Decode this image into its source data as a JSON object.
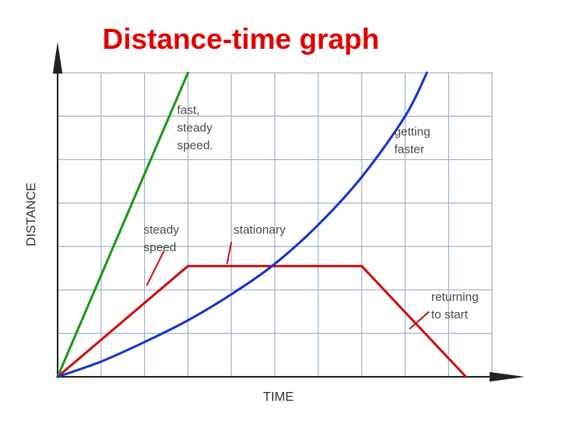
{
  "title": "Distance-time graph",
  "chart_data": {
    "type": "line",
    "xlabel": "TIME",
    "ylabel": "DISTANCE",
    "grid": true,
    "xlim": [
      0,
      10
    ],
    "ylim": [
      0,
      7
    ],
    "series": [
      {
        "id": "green",
        "color": "#1a9a1a",
        "points": [
          [
            0,
            0
          ],
          [
            3,
            7
          ]
        ]
      },
      {
        "id": "red",
        "color": "#cc1111",
        "points": [
          [
            0,
            0
          ],
          [
            3,
            2.55
          ],
          [
            7,
            2.55
          ],
          [
            9.4,
            0
          ]
        ]
      },
      {
        "id": "blue",
        "color": "#1536c8",
        "points": [
          [
            0,
            0
          ],
          [
            1,
            0.35
          ],
          [
            2,
            0.8
          ],
          [
            3,
            1.3
          ],
          [
            4,
            1.9
          ],
          [
            5,
            2.6
          ],
          [
            6,
            3.5
          ],
          [
            7,
            4.6
          ],
          [
            8,
            6.0
          ],
          [
            8.5,
            7.0
          ]
        ]
      }
    ],
    "annotations": [
      {
        "lines": [
          "fast,",
          "steady",
          "speed."
        ],
        "at": [
          2.75,
          6.05
        ]
      },
      {
        "lines": [
          "getting",
          "faster"
        ],
        "at": [
          7.75,
          5.55
        ]
      },
      {
        "lines": [
          "steady",
          "speed"
        ],
        "at": [
          1.98,
          3.3
        ]
      },
      {
        "lines": [
          "stationary"
        ],
        "at": [
          4.05,
          3.3
        ]
      },
      {
        "lines": [
          "returning",
          "to start"
        ],
        "at": [
          8.6,
          1.75
        ]
      }
    ]
  }
}
